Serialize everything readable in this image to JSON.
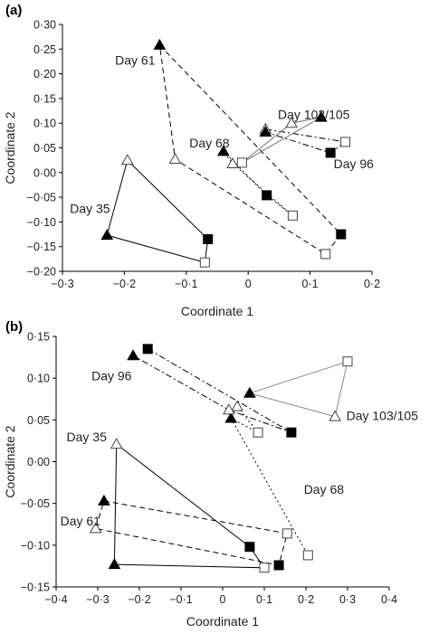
{
  "panels": [
    {
      "label": "(a)",
      "type": "scatter",
      "xlabel": "Coordinate 1",
      "ylabel": "Coordinate 2",
      "xlim": [
        -0.3,
        0.2
      ],
      "ylim": [
        -0.2,
        0.3
      ],
      "xticks": [
        -0.3,
        -0.2,
        -0.1,
        0,
        0.1,
        0.2
      ],
      "yticks": [
        -0.2,
        -0.15,
        -0.1,
        -0.05,
        0,
        0.05,
        0.1,
        0.15,
        0.2,
        0.25,
        0.3
      ],
      "xtick_labels": [
        "−0·3",
        "−0·2",
        "−0·1",
        "0",
        "0·1",
        "0·2"
      ],
      "ytick_labels": [
        "−0·20",
        "−0·15",
        "−0·10",
        "−0·05",
        "0·00",
        "0·05",
        "0·10",
        "0·15",
        "0·20",
        "0·25",
        "0·30"
      ],
      "groups": [
        {
          "label": "Day 35",
          "line": "solid",
          "color": "#000000",
          "label_pos": [
            -0.288,
            -0.073
          ],
          "points": [
            {
              "x": -0.195,
              "y": 0.025,
              "marker": "triangle-open"
            },
            {
              "x": -0.228,
              "y": -0.127,
              "marker": "triangle-filled"
            },
            {
              "x": -0.065,
              "y": -0.135,
              "marker": "square-filled"
            },
            {
              "x": -0.07,
              "y": -0.182,
              "marker": "square-open"
            }
          ],
          "order": [
            0,
            1,
            3,
            2,
            0
          ]
        },
        {
          "label": "Day 61",
          "line": "dashed",
          "color": "#000000",
          "label_pos": [
            -0.215,
            0.228
          ],
          "points": [
            {
              "x": -0.143,
              "y": 0.258,
              "marker": "triangle-filled"
            },
            {
              "x": -0.118,
              "y": 0.027,
              "marker": "triangle-open"
            },
            {
              "x": 0.15,
              "y": -0.125,
              "marker": "square-filled"
            },
            {
              "x": 0.125,
              "y": -0.165,
              "marker": "square-open"
            }
          ],
          "order": [
            0,
            2,
            3,
            1,
            0
          ]
        },
        {
          "label": "Day 68",
          "line": "dotted",
          "color": "#000000",
          "label_pos": [
            -0.095,
            0.06
          ],
          "points": [
            {
              "x": -0.04,
              "y": 0.043,
              "marker": "triangle-filled"
            },
            {
              "x": -0.025,
              "y": 0.018,
              "marker": "triangle-open"
            },
            {
              "x": 0.03,
              "y": -0.046,
              "marker": "square-filled"
            },
            {
              "x": 0.072,
              "y": -0.087,
              "marker": "square-open"
            }
          ],
          "order": [
            0,
            2,
            3,
            1,
            0
          ]
        },
        {
          "label": "Day 96",
          "line": "dashdot",
          "color": "#000000",
          "label_pos": [
            0.138,
            0.018
          ],
          "points": [
            {
              "x": 0.028,
              "y": 0.088,
              "marker": "triangle-open"
            },
            {
              "x": 0.028,
              "y": 0.082,
              "marker": "triangle-filled"
            },
            {
              "x": 0.157,
              "y": 0.062,
              "marker": "square-open"
            },
            {
              "x": 0.133,
              "y": 0.04,
              "marker": "square-filled"
            }
          ],
          "order": [
            0,
            2,
            3,
            1
          ]
        },
        {
          "label": "Day 103/105",
          "line": "solid",
          "color": "#777777",
          "label_pos": [
            0.048,
            0.118
          ],
          "points": [
            {
              "x": 0.118,
              "y": 0.112,
              "marker": "triangle-filled"
            },
            {
              "x": 0.07,
              "y": 0.1,
              "marker": "triangle-open"
            },
            {
              "x": -0.01,
              "y": 0.02,
              "marker": "square-open"
            }
          ],
          "order": [
            0,
            1,
            2,
            0
          ]
        }
      ]
    },
    {
      "label": "(b)",
      "type": "scatter",
      "xlabel": "Coordinate 1",
      "ylabel": "Coordinate 2",
      "xlim": [
        -0.4,
        0.4
      ],
      "ylim": [
        -0.15,
        0.15
      ],
      "xticks": [
        -0.4,
        -0.3,
        -0.2,
        -0.1,
        0,
        0.1,
        0.2,
        0.3,
        0.4
      ],
      "yticks": [
        -0.15,
        -0.1,
        -0.05,
        0,
        0.05,
        0.1,
        0.15
      ],
      "xtick_labels": [
        "−0·4",
        "−0·3",
        "−0·2",
        "−0·1",
        "0",
        "0·1",
        "0·2",
        "0·3",
        "0·4"
      ],
      "ytick_labels": [
        "−0·15",
        "−0·10",
        "−0·05",
        "0·00",
        "0·05",
        "0·10",
        "0·15"
      ],
      "groups": [
        {
          "label": "Day 35",
          "line": "solid",
          "color": "#000000",
          "label_pos": [
            -0.375,
            0.03
          ],
          "points": [
            {
              "x": -0.255,
              "y": 0.021,
              "marker": "triangle-open"
            },
            {
              "x": -0.26,
              "y": -0.123,
              "marker": "triangle-filled"
            },
            {
              "x": 0.1,
              "y": -0.127,
              "marker": "square-open"
            },
            {
              "x": 0.065,
              "y": -0.102,
              "marker": "square-filled"
            }
          ],
          "order": [
            0,
            1,
            2,
            3,
            0
          ]
        },
        {
          "label": "Day 61",
          "line": "dashed",
          "color": "#000000",
          "label_pos": [
            -0.39,
            -0.071
          ],
          "points": [
            {
              "x": -0.285,
              "y": -0.047,
              "marker": "triangle-filled"
            },
            {
              "x": -0.305,
              "y": -0.08,
              "marker": "triangle-open"
            },
            {
              "x": 0.155,
              "y": -0.086,
              "marker": "square-open"
            },
            {
              "x": 0.135,
              "y": -0.124,
              "marker": "square-filled"
            }
          ],
          "order": [
            0,
            2,
            3,
            1,
            0
          ]
        },
        {
          "label": "Day 68",
          "line": "dotted",
          "color": "#000000",
          "label_pos": [
            0.195,
            -0.033
          ],
          "points": [
            {
              "x": 0.035,
              "y": 0.066,
              "marker": "triangle-open"
            },
            {
              "x": 0.085,
              "y": 0.035,
              "marker": "square-open"
            },
            {
              "x": 0.02,
              "y": 0.052,
              "marker": "triangle-filled"
            },
            {
              "x": 0.205,
              "y": -0.112,
              "marker": "square-open"
            }
          ],
          "order": [
            0,
            1,
            2,
            3
          ]
        },
        {
          "label": "Day 96",
          "line": "dashdot",
          "color": "#000000",
          "label_pos": [
            -0.315,
            0.103
          ],
          "points": [
            {
              "x": -0.18,
              "y": 0.135,
              "marker": "square-filled"
            },
            {
              "x": -0.215,
              "y": 0.127,
              "marker": "triangle-filled"
            },
            {
              "x": 0.165,
              "y": 0.035,
              "marker": "square-filled"
            },
            {
              "x": 0.015,
              "y": 0.062,
              "marker": "triangle-open"
            }
          ],
          "order": [
            0,
            2,
            3,
            1
          ]
        },
        {
          "label": "Day 103/105",
          "line": "solid",
          "color": "#888888",
          "label_pos": [
            0.297,
            0.055
          ],
          "points": [
            {
              "x": 0.3,
              "y": 0.12,
              "marker": "square-open"
            },
            {
              "x": 0.27,
              "y": 0.054,
              "marker": "triangle-open"
            },
            {
              "x": 0.065,
              "y": 0.082,
              "marker": "triangle-filled"
            }
          ],
          "order": [
            0,
            1,
            2,
            0
          ]
        }
      ]
    }
  ]
}
